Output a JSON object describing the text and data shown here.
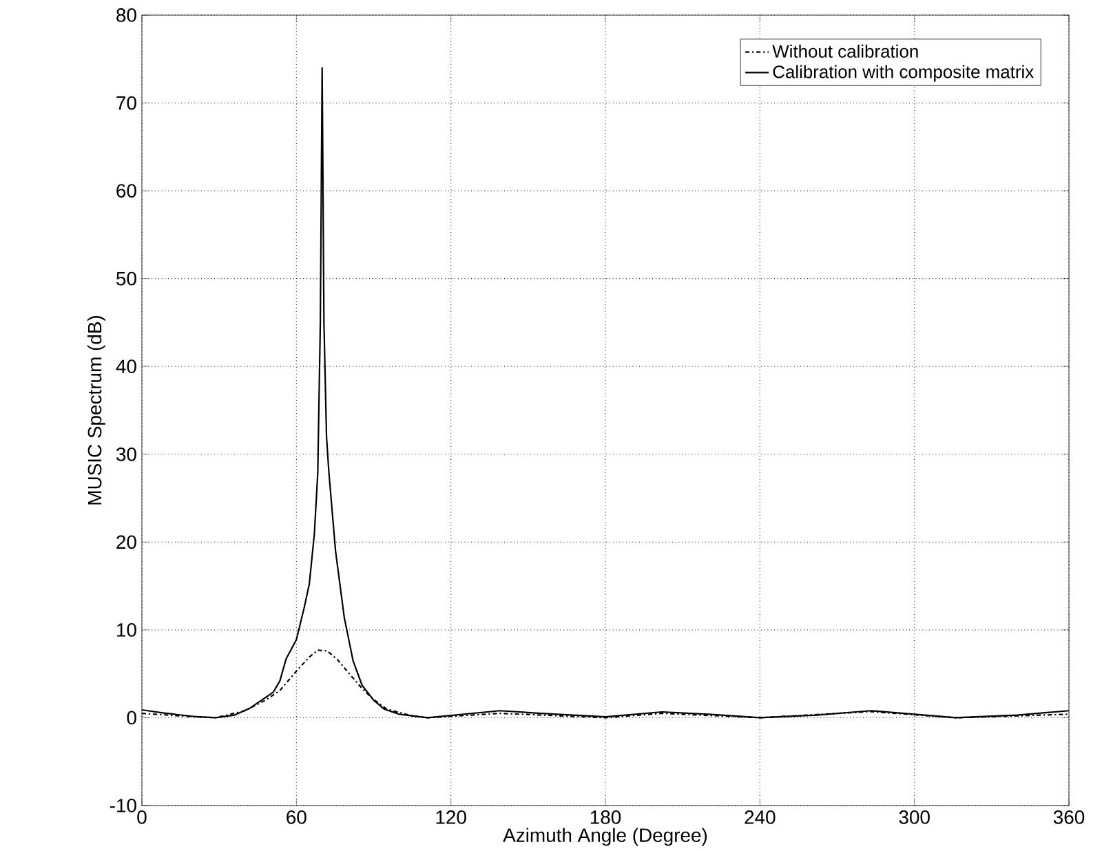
{
  "chart_data": {
    "type": "line",
    "xlabel": "Azimuth Angle (Degree)",
    "ylabel": "MUSIC Spectrum (dB)",
    "xlim": [
      0,
      360
    ],
    "xticks": [
      0,
      60,
      120,
      180,
      240,
      300,
      360
    ],
    "ylim": [
      -10,
      80
    ],
    "yticks": [
      -10,
      0,
      10,
      20,
      30,
      40,
      50,
      60,
      70,
      80
    ],
    "grid": true,
    "legend": "top right",
    "marker": "none",
    "series": [
      {
        "name": "Without calibration",
        "color": "#000000",
        "line_style": "dashdot",
        "x": [
          0,
          15,
          28.6,
          40,
          48,
          53.6,
          60,
          65,
          68.3,
          72,
          76,
          80.3,
          85,
          89,
          95,
          105,
          111,
          139,
          180,
          202,
          240,
          283,
          316,
          360
        ],
        "values": [
          0.5,
          0.2,
          0,
          0.8,
          2,
          3.1,
          5.3,
          6.9,
          7.7,
          7.6,
          6.6,
          5.1,
          3.5,
          2.3,
          1,
          0.2,
          0,
          0.5,
          0,
          0.5,
          0,
          0.7,
          0,
          0.4
        ]
      },
      {
        "name": "Calibration with composite matrix",
        "color": "#000000",
        "line_style": "solid",
        "x": [
          0,
          8,
          20,
          28.6,
          36,
          42,
          51,
          53.6,
          56,
          60,
          63,
          65,
          67,
          68.3,
          69.3,
          70,
          70.7,
          71.7,
          72.6,
          75.2,
          78.6,
          82,
          85.5,
          90,
          94,
          100,
          111,
          125,
          139,
          155,
          180,
          202,
          220,
          240,
          262,
          283,
          300,
          316,
          340,
          360
        ],
        "values": [
          0.9,
          0.55,
          0.15,
          0,
          0.3,
          1.1,
          2.9,
          4.2,
          6.7,
          8.9,
          12.5,
          15.2,
          21,
          27.9,
          45,
          74,
          45,
          32,
          28,
          19,
          11.4,
          6.5,
          3.7,
          2,
          1,
          0.4,
          0,
          0.4,
          0.8,
          0.5,
          0.1,
          0.66,
          0.4,
          0,
          0.3,
          0.8,
          0.4,
          0,
          0.3,
          0.8
        ]
      }
    ]
  }
}
